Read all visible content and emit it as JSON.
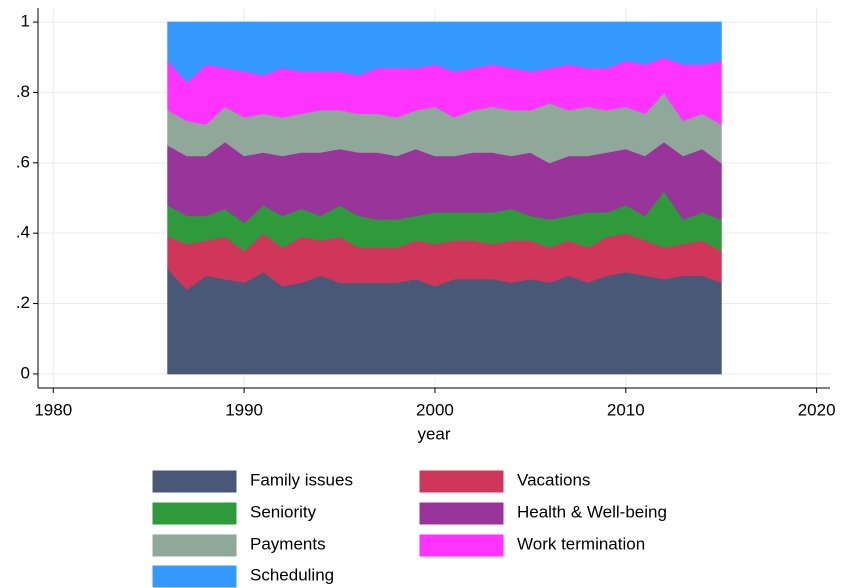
{
  "chart_data": {
    "type": "stacked_area",
    "xlabel": "year",
    "x": [
      1986,
      1987,
      1988,
      1989,
      1990,
      1991,
      1992,
      1993,
      1994,
      1995,
      1996,
      1997,
      1998,
      1999,
      2000,
      2001,
      2002,
      2003,
      2004,
      2005,
      2006,
      2007,
      2008,
      2009,
      2010,
      2011,
      2012,
      2013,
      2014,
      2015
    ],
    "series": [
      {
        "name": "Family issues",
        "color": "#4a5878",
        "values": [
          0.3,
          0.24,
          0.28,
          0.27,
          0.26,
          0.29,
          0.25,
          0.26,
          0.28,
          0.26,
          0.26,
          0.26,
          0.26,
          0.27,
          0.25,
          0.27,
          0.27,
          0.27,
          0.26,
          0.27,
          0.26,
          0.28,
          0.26,
          0.28,
          0.29,
          0.28,
          0.27,
          0.28,
          0.28,
          0.26
        ]
      },
      {
        "name": "Vacations",
        "color": "#d0365a",
        "values": [
          0.09,
          0.13,
          0.1,
          0.12,
          0.09,
          0.11,
          0.11,
          0.13,
          0.1,
          0.13,
          0.1,
          0.1,
          0.1,
          0.11,
          0.12,
          0.11,
          0.11,
          0.1,
          0.12,
          0.11,
          0.1,
          0.1,
          0.1,
          0.11,
          0.11,
          0.1,
          0.09,
          0.09,
          0.1,
          0.09
        ]
      },
      {
        "name": "Seniority",
        "color": "#2e9a3c",
        "values": [
          0.09,
          0.08,
          0.07,
          0.08,
          0.08,
          0.08,
          0.09,
          0.08,
          0.07,
          0.09,
          0.09,
          0.08,
          0.08,
          0.07,
          0.09,
          0.08,
          0.08,
          0.09,
          0.09,
          0.07,
          0.08,
          0.07,
          0.1,
          0.07,
          0.08,
          0.07,
          0.16,
          0.07,
          0.08,
          0.09
        ]
      },
      {
        "name": "Health & Well-being",
        "color": "#98349a",
        "values": [
          0.17,
          0.17,
          0.17,
          0.19,
          0.19,
          0.15,
          0.17,
          0.16,
          0.18,
          0.16,
          0.18,
          0.19,
          0.18,
          0.19,
          0.16,
          0.16,
          0.17,
          0.17,
          0.15,
          0.18,
          0.16,
          0.17,
          0.16,
          0.17,
          0.16,
          0.17,
          0.14,
          0.18,
          0.18,
          0.16
        ]
      },
      {
        "name": "Payments",
        "color": "#8fa89a",
        "values": [
          0.1,
          0.1,
          0.09,
          0.1,
          0.11,
          0.11,
          0.11,
          0.11,
          0.12,
          0.11,
          0.11,
          0.11,
          0.11,
          0.11,
          0.14,
          0.11,
          0.12,
          0.13,
          0.13,
          0.12,
          0.17,
          0.13,
          0.14,
          0.12,
          0.12,
          0.12,
          0.14,
          0.1,
          0.1,
          0.11
        ]
      },
      {
        "name": "Work termination",
        "color": "#ff33ff",
        "values": [
          0.14,
          0.11,
          0.17,
          0.11,
          0.13,
          0.11,
          0.14,
          0.12,
          0.11,
          0.11,
          0.11,
          0.13,
          0.14,
          0.12,
          0.12,
          0.13,
          0.12,
          0.12,
          0.12,
          0.11,
          0.1,
          0.13,
          0.11,
          0.12,
          0.13,
          0.14,
          0.1,
          0.16,
          0.14,
          0.18
        ]
      },
      {
        "name": "Scheduling",
        "color": "#3399ff",
        "values": [
          0.11,
          0.17,
          0.12,
          0.13,
          0.14,
          0.15,
          0.13,
          0.14,
          0.14,
          0.14,
          0.15,
          0.13,
          0.13,
          0.13,
          0.12,
          0.14,
          0.13,
          0.12,
          0.13,
          0.14,
          0.13,
          0.12,
          0.13,
          0.13,
          0.11,
          0.12,
          0.1,
          0.12,
          0.12,
          0.11
        ]
      }
    ],
    "xlim": [
      1979.2,
      2020.7
    ],
    "xticks": [
      1980,
      1990,
      2000,
      2010,
      2020
    ],
    "ylim": [
      -0.04,
      1.04
    ],
    "yticks": [
      0,
      {
        "value": 0.2,
        "label": ".2"
      },
      {
        "value": 0.4,
        "label": ".4"
      },
      {
        "value": 0.6,
        "label": ".6"
      },
      {
        "value": 0.8,
        "label": ".8"
      },
      1
    ],
    "grid": true,
    "legend": "bottom"
  }
}
